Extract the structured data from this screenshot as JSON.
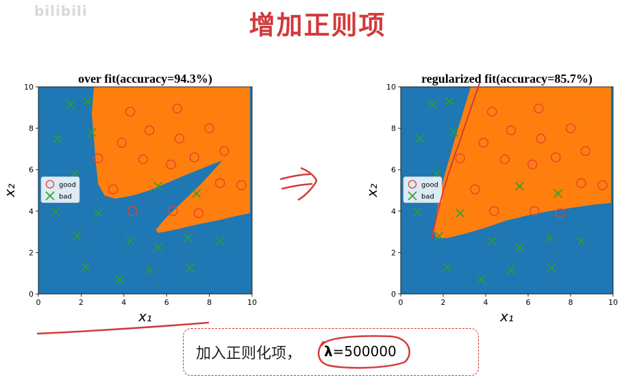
{
  "watermark": "bilibili",
  "page_title": "增加正则项",
  "colors": {
    "class_bad_region": "#1f77b4",
    "class_good_region": "#ff7f0e",
    "good_marker": "#e8412c",
    "bad_marker": "#2ca02c",
    "annotation": "#d3393a"
  },
  "chart_data": [
    {
      "type": "scatter",
      "title": "over fit(accuracy=94.3%)",
      "xlabel": "x₁",
      "ylabel": "x₂",
      "xlim": [
        0,
        10
      ],
      "ylim": [
        0,
        10
      ],
      "xticks": [
        "0",
        "2",
        "4",
        "6",
        "8",
        "10"
      ],
      "yticks": [
        "0",
        "2",
        "4",
        "6",
        "8",
        "10"
      ],
      "legend": {
        "placement": "center-left",
        "entries": [
          "good",
          "bad"
        ]
      },
      "series": [
        {
          "name": "good",
          "marker": "circle",
          "points": [
            [
              4.3,
              8.8
            ],
            [
              6.5,
              8.95
            ],
            [
              2.8,
              6.55
            ],
            [
              3.9,
              7.3
            ],
            [
              5.2,
              7.9
            ],
            [
              6.6,
              7.5
            ],
            [
              8.0,
              8.0
            ],
            [
              8.7,
              6.9
            ],
            [
              4.9,
              6.5
            ],
            [
              6.2,
              6.25
            ],
            [
              7.3,
              6.6
            ],
            [
              3.5,
              5.05
            ],
            [
              8.5,
              5.35
            ],
            [
              9.5,
              5.25
            ],
            [
              4.4,
              4.0
            ],
            [
              6.3,
              4.0
            ],
            [
              7.5,
              3.9
            ]
          ]
        },
        {
          "name": "bad",
          "marker": "x",
          "points": [
            [
              1.5,
              9.15
            ],
            [
              2.3,
              9.3
            ],
            [
              0.9,
              7.5
            ],
            [
              2.5,
              7.8
            ],
            [
              1.7,
              5.8
            ],
            [
              5.6,
              5.2
            ],
            [
              7.4,
              4.85
            ],
            [
              0.8,
              3.95
            ],
            [
              2.8,
              3.9
            ],
            [
              1.8,
              2.8
            ],
            [
              4.3,
              2.55
            ],
            [
              5.6,
              2.25
            ],
            [
              7.0,
              2.7
            ],
            [
              8.5,
              2.55
            ],
            [
              2.2,
              1.3
            ],
            [
              3.8,
              0.7
            ],
            [
              5.2,
              1.15
            ],
            [
              7.1,
              1.25
            ]
          ]
        }
      ],
      "decision_regions": {
        "good_polygons": [
          [
            [
              2.6,
              10
            ],
            [
              9.9,
              10
            ],
            [
              9.9,
              3.9
            ],
            [
              9.2,
              3.75
            ],
            [
              8.4,
              3.55
            ],
            [
              7.4,
              3.35
            ],
            [
              6.6,
              3.15
            ],
            [
              5.9,
              3.0
            ],
            [
              5.6,
              2.95
            ],
            [
              5.5,
              3.1
            ],
            [
              5.9,
              3.6
            ],
            [
              6.7,
              4.4
            ],
            [
              7.6,
              5.3
            ],
            [
              8.4,
              6.2
            ],
            [
              8.6,
              6.45
            ],
            [
              8.0,
              6.2
            ],
            [
              6.9,
              5.75
            ],
            [
              6.0,
              5.35
            ],
            [
              5.2,
              5.0
            ],
            [
              4.4,
              4.75
            ],
            [
              3.6,
              4.6
            ],
            [
              3.1,
              4.75
            ],
            [
              2.8,
              5.3
            ],
            [
              2.7,
              6.2
            ],
            [
              2.6,
              7.5
            ],
            [
              2.5,
              8.7
            ]
          ]
        ]
      }
    },
    {
      "type": "scatter",
      "title": "regularized fit(accuracy=85.7%)",
      "xlabel": "x₁",
      "ylabel": "x₂",
      "xlim": [
        0,
        10
      ],
      "ylim": [
        0,
        10
      ],
      "xticks": [
        "0",
        "2",
        "4",
        "6",
        "8",
        "10"
      ],
      "yticks": [
        "0",
        "2",
        "4",
        "6",
        "8",
        "10"
      ],
      "legend": {
        "placement": "center-left",
        "entries": [
          "good",
          "bad"
        ]
      },
      "series": [
        {
          "name": "good",
          "marker": "circle",
          "points": [
            [
              4.3,
              8.8
            ],
            [
              6.5,
              8.95
            ],
            [
              2.8,
              6.55
            ],
            [
              3.9,
              7.3
            ],
            [
              5.2,
              7.9
            ],
            [
              6.6,
              7.5
            ],
            [
              8.0,
              8.0
            ],
            [
              8.7,
              6.9
            ],
            [
              4.9,
              6.5
            ],
            [
              6.2,
              6.25
            ],
            [
              7.3,
              6.6
            ],
            [
              3.5,
              5.05
            ],
            [
              8.5,
              5.35
            ],
            [
              9.5,
              5.25
            ],
            [
              4.4,
              4.0
            ],
            [
              6.3,
              4.0
            ],
            [
              7.5,
              3.9
            ]
          ]
        },
        {
          "name": "bad",
          "marker": "x",
          "points": [
            [
              1.5,
              9.15
            ],
            [
              2.3,
              9.3
            ],
            [
              0.9,
              7.5
            ],
            [
              2.5,
              7.8
            ],
            [
              1.7,
              5.8
            ],
            [
              5.6,
              5.2
            ],
            [
              7.4,
              4.85
            ],
            [
              0.8,
              3.95
            ],
            [
              2.8,
              3.9
            ],
            [
              1.8,
              2.8
            ],
            [
              4.3,
              2.55
            ],
            [
              5.6,
              2.25
            ],
            [
              7.0,
              2.7
            ],
            [
              8.5,
              2.55
            ],
            [
              2.2,
              1.3
            ],
            [
              3.8,
              0.7
            ],
            [
              5.2,
              1.15
            ],
            [
              7.1,
              1.25
            ]
          ]
        }
      ],
      "decision_regions": {
        "good_polygons": [
          [
            [
              3.3,
              10
            ],
            [
              9.9,
              10
            ],
            [
              9.9,
              4.4
            ],
            [
              9.0,
              4.3
            ],
            [
              8.0,
              4.15
            ],
            [
              7.0,
              4.0
            ],
            [
              6.0,
              3.8
            ],
            [
              5.0,
              3.55
            ],
            [
              4.0,
              3.2
            ],
            [
              3.0,
              2.9
            ],
            [
              2.2,
              2.7
            ],
            [
              1.7,
              2.7
            ],
            [
              1.55,
              3.05
            ],
            [
              1.7,
              4.0
            ],
            [
              2.0,
              5.5
            ],
            [
              2.5,
              7.3
            ],
            [
              3.0,
              9.0
            ]
          ]
        ]
      }
    }
  ],
  "note": {
    "text": "加入正则化项，",
    "lambda_symbol": "λ",
    "lambda_value": "=500000"
  }
}
